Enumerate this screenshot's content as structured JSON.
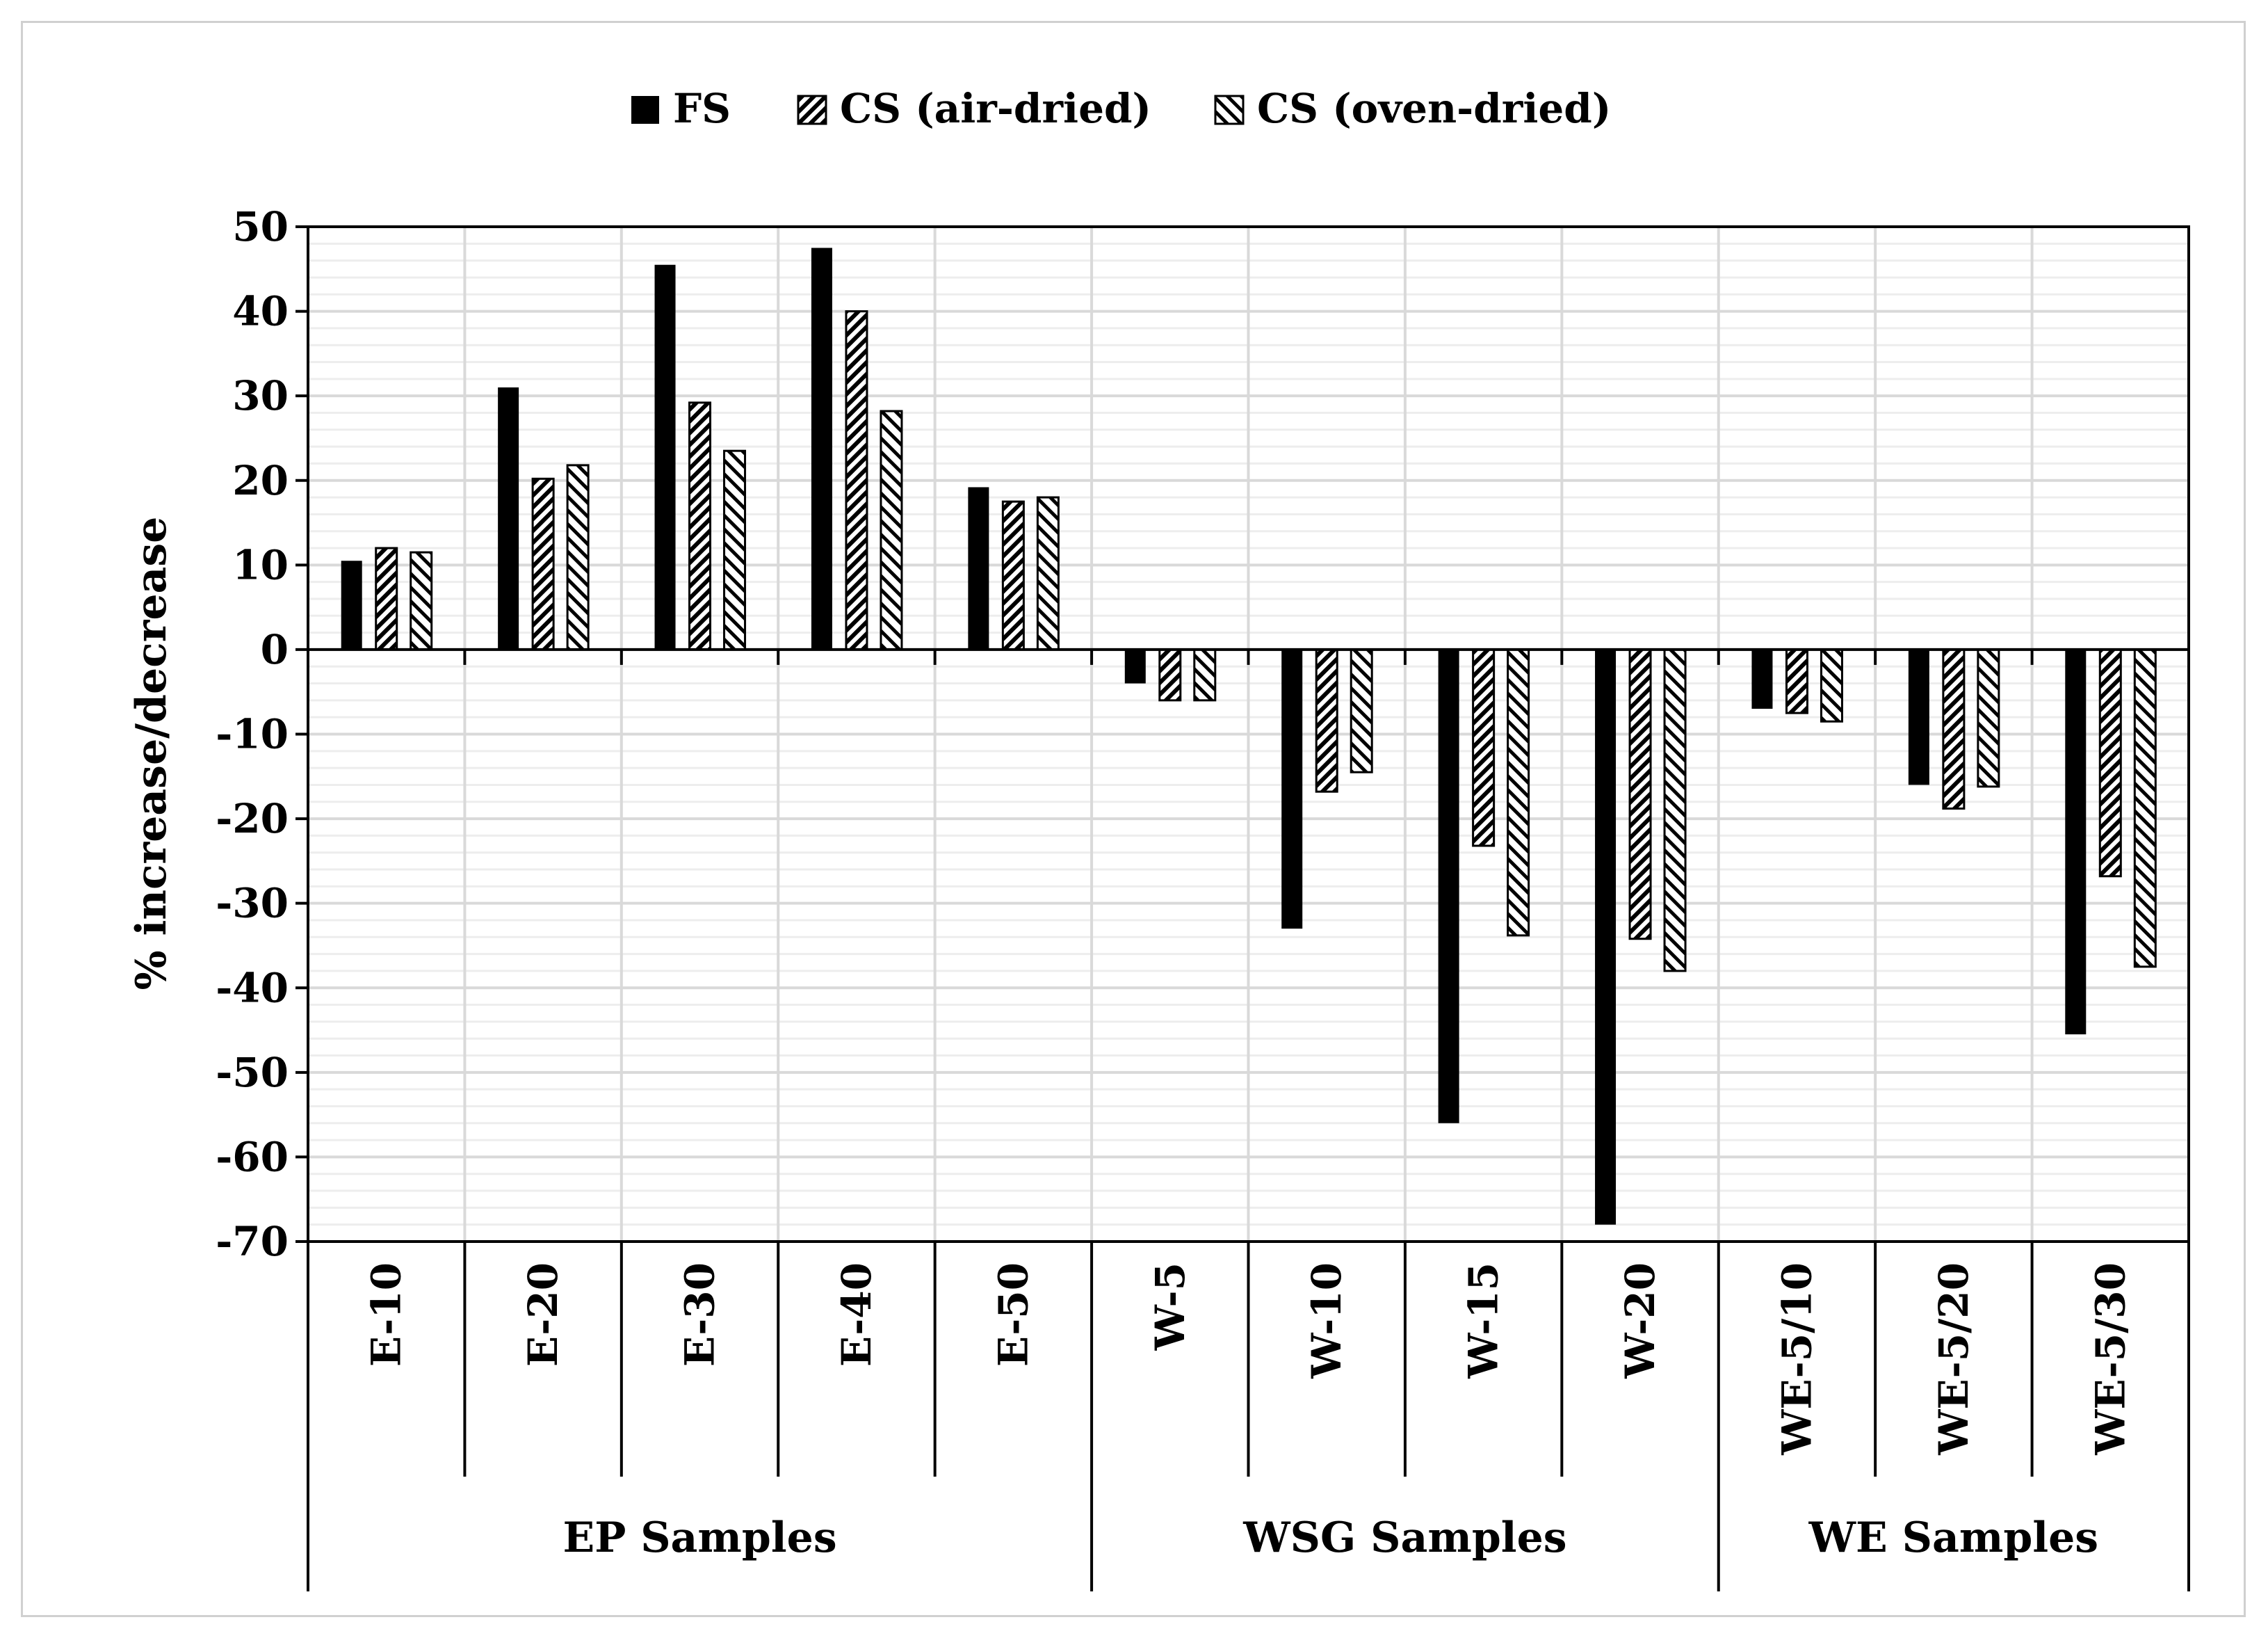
{
  "chart_data": {
    "type": "bar",
    "title": "",
    "ylabel": "% increase/decrease",
    "xlabel": "",
    "ylim": [
      -70,
      50
    ],
    "yticks": [
      "50",
      "40",
      "30",
      "20",
      "10",
      "0",
      "-10",
      "-20",
      "-30",
      "-40",
      "-50",
      "-60",
      "-70"
    ],
    "ytick_values": [
      50,
      40,
      30,
      20,
      10,
      0,
      -10,
      -20,
      -30,
      -40,
      -50,
      -60,
      -70
    ],
    "minor_gridline_step": 2,
    "categories": [
      "E-10",
      "E-20",
      "E-30",
      "E-40",
      "E-50",
      "W-5",
      "W-10",
      "W-15",
      "W-20",
      "WE-5/10",
      "WE-5/20",
      "WE-5/30"
    ],
    "groups": [
      {
        "label": "EP Samples",
        "count": 5
      },
      {
        "label": "WSG Samples",
        "count": 4
      },
      {
        "label": "WE Samples",
        "count": 3
      }
    ],
    "series": [
      {
        "name": "FS",
        "pattern": "solid",
        "values": [
          10.5,
          31,
          45.5,
          47.5,
          19.2,
          -4,
          -33,
          -56,
          -68,
          -7,
          -16,
          -45.5
        ]
      },
      {
        "name": "CS (air-dried)",
        "pattern": "diag-dense",
        "values": [
          12,
          20.2,
          29.2,
          40,
          17.5,
          -6,
          -16.8,
          -23.2,
          -34.2,
          -7.5,
          -18.8,
          -26.8
        ]
      },
      {
        "name": "CS (oven-dried)",
        "pattern": "diag-sparse",
        "values": [
          11.5,
          21.8,
          23.5,
          28.2,
          18,
          -6,
          -14.5,
          -33.8,
          -38,
          -8.5,
          -16.2,
          -37.5
        ]
      }
    ],
    "legend_position": "top-center",
    "colors": {
      "bar": "#000000",
      "grid_major": "#d9d9d9",
      "grid_minor": "#ededed",
      "border": "#000000"
    }
  }
}
